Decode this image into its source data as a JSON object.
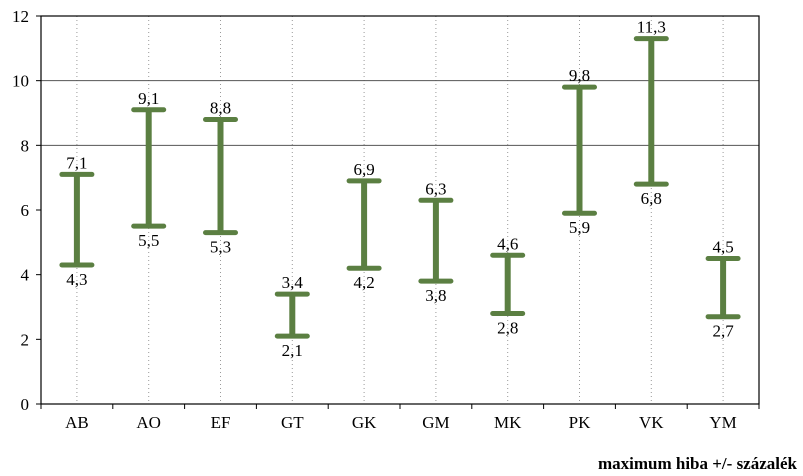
{
  "chart_data": {
    "type": "range-bar",
    "categories": [
      "AB",
      "AO",
      "EF",
      "GT",
      "GK",
      "GM",
      "MK",
      "PK",
      "VK",
      "YM"
    ],
    "series": [
      {
        "low": [
          4.3,
          5.5,
          5.3,
          2.1,
          4.2,
          3.8,
          2.8,
          5.9,
          6.8,
          2.7
        ],
        "high": [
          7.1,
          9.1,
          8.8,
          3.4,
          6.9,
          6.3,
          4.6,
          9.8,
          11.3,
          4.5
        ]
      }
    ],
    "low_labels": [
      "4,3",
      "5,5",
      "5,3",
      "2,1",
      "4,2",
      "3,8",
      "2,8",
      "5,9",
      "6,8",
      "2,7"
    ],
    "high_labels": [
      "7,1",
      "9,1",
      "8,8",
      "3,4",
      "6,9",
      "6,3",
      "4,6",
      "9,8",
      "11,3",
      "4,5"
    ],
    "ylim": [
      0,
      12
    ],
    "yticks": [
      0,
      2,
      4,
      6,
      8,
      10,
      12
    ],
    "ytick_labels": [
      "0",
      "2",
      "4",
      "6",
      "8",
      "10",
      "12"
    ],
    "major_gridlines": [
      8,
      10
    ],
    "grid": "dotted vertical, solid horizontal at 8 and 10",
    "bar_color": "#5b7f42",
    "footnote": "maximum hiba +/- százalék"
  }
}
